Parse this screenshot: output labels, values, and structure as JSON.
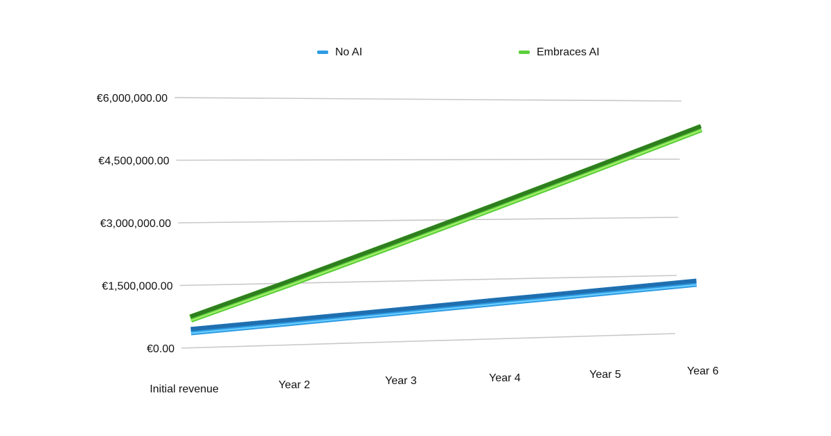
{
  "chart_data": {
    "type": "line",
    "categories": [
      "Initial revenue",
      "Year 2",
      "Year 3",
      "Year 4",
      "Year 5",
      "Year 6"
    ],
    "series": [
      {
        "name": "No AI",
        "values": [
          400000,
          560000,
          740000,
          920000,
          1100000,
          1300000
        ],
        "color": "#2d9be3"
      },
      {
        "name": "Embraces AI",
        "values": [
          700000,
          1500000,
          2400000,
          3300000,
          4250000,
          5300000
        ],
        "color": "#5ccf3a"
      }
    ],
    "ylim": [
      0,
      6000000
    ],
    "y_ticks": [
      0,
      1500000,
      3000000,
      4500000,
      6000000
    ],
    "y_tick_labels": [
      "€0.00",
      "€1,500,000.00",
      "€3,000,000.00",
      "€4,500,000.00",
      "€6,000,000.00"
    ],
    "grid": true,
    "legend_position": "top",
    "style": "3d-perspective"
  }
}
